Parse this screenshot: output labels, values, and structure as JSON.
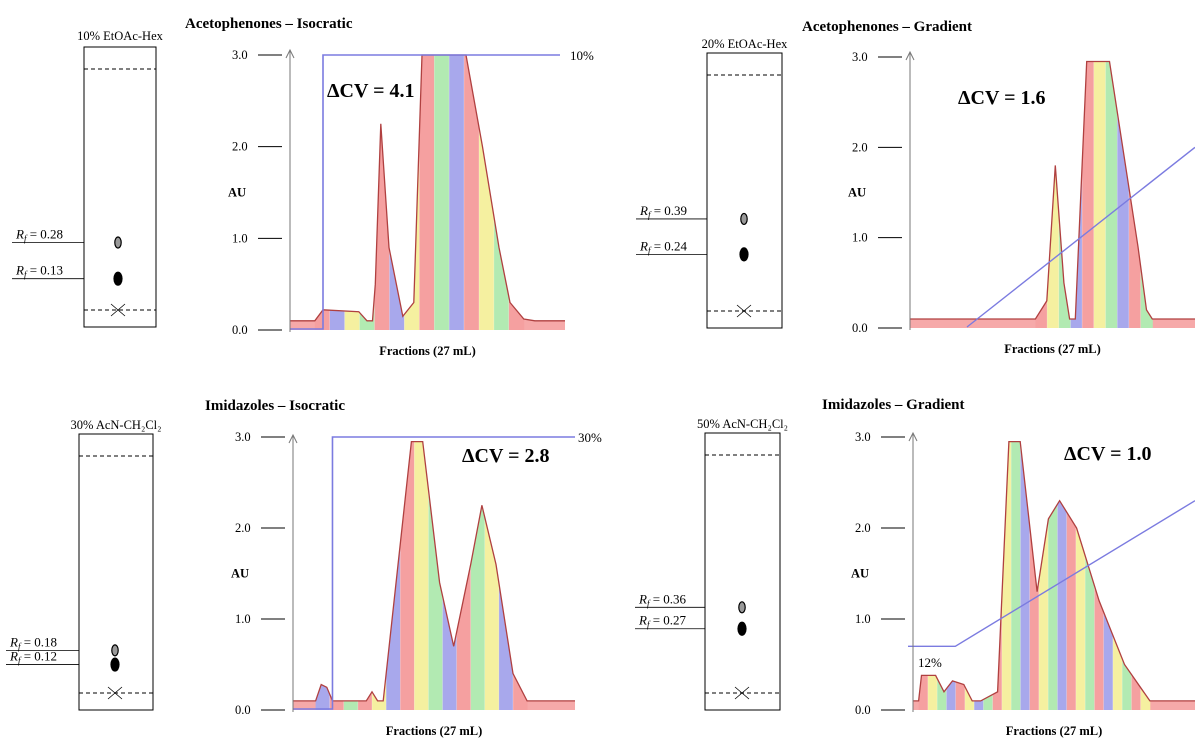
{
  "colors": {
    "red": "#f5a0a0",
    "yellow": "#f5f0a0",
    "green": "#b2eab2",
    "blue": "#a8a8ec",
    "gradient_line": "#7b7be0",
    "trace": "#b04040",
    "baseline_fill": "#f5a0a0"
  },
  "panels": [
    {
      "title": "Acetophenones – Isocratic",
      "tlc": {
        "solvent": "10% EtOAc-Hex",
        "spots": [
          {
            "label": "R",
            "sub": "f",
            "value": " = 0.28",
            "rf": 0.28,
            "shade": "light"
          },
          {
            "label": "R",
            "sub": "f",
            "value": " = 0.13",
            "rf": 0.13,
            "shade": "dark"
          }
        ]
      },
      "chart_data": {
        "type": "area",
        "ylabel": "AU",
        "xlabel": "Fractions (27 mL)",
        "ylim": [
          0,
          3
        ],
        "y_ticks": [
          "0.0",
          "1.0",
          "2.0",
          "3.0"
        ],
        "y_tick_values": [
          0,
          1,
          2,
          3
        ],
        "annotation": "ΔCV = 4.1",
        "gradient": {
          "type": "step",
          "label": "10%"
        },
        "trace": {
          "x": [
            0,
            0.09,
            0.12,
            0.25,
            0.28,
            0.3,
            0.31,
            0.33,
            0.36,
            0.41,
            0.45,
            0.48,
            0.56,
            0.64,
            0.7,
            0.76,
            0.8,
            0.85,
            0.89,
            1.0
          ],
          "y": [
            0.1,
            0.1,
            0.22,
            0.2,
            0.1,
            0.1,
            0.5,
            2.25,
            0.9,
            0.15,
            0.3,
            3.0,
            3.0,
            3.0,
            2.0,
            0.9,
            0.3,
            0.12,
            0.1,
            0.1
          ]
        },
        "bands": [
          "red",
          "blue",
          "yellow",
          "green",
          "red",
          "blue",
          "yellow",
          "red",
          "green",
          "blue",
          "red",
          "yellow",
          "green",
          "red"
        ]
      }
    },
    {
      "title": "Acetophenones – Gradient",
      "tlc": {
        "solvent": "20% EtOAc-Hex",
        "spots": [
          {
            "label": "R",
            "sub": "f",
            "value": " = 0.39",
            "rf": 0.39,
            "shade": "light"
          },
          {
            "label": "R",
            "sub": "f",
            "value": " = 0.24",
            "rf": 0.24,
            "shade": "dark"
          }
        ]
      },
      "chart_data": {
        "type": "area",
        "ylabel": "AU",
        "xlabel": "Fractions (27 mL)",
        "ylim": [
          0,
          3
        ],
        "y_ticks": [
          "0.0",
          "1.0",
          "2.0",
          "3.0"
        ],
        "y_tick_values": [
          0,
          1,
          2,
          3
        ],
        "annotation": "ΔCV = 1.6",
        "gradient": {
          "type": "ramp",
          "label": ""
        },
        "trace": {
          "x": [
            0,
            0.44,
            0.48,
            0.51,
            0.54,
            0.56,
            0.58,
            0.62,
            0.66,
            0.7,
            0.8,
            0.83,
            0.85,
            0.87,
            1.0
          ],
          "y": [
            0.1,
            0.1,
            0.3,
            1.8,
            0.5,
            0.1,
            0.1,
            2.95,
            2.95,
            2.95,
            0.9,
            0.2,
            0.1,
            0.1,
            0.1
          ]
        },
        "bands": [
          "red",
          "yellow",
          "green",
          "blue",
          "red",
          "yellow",
          "green",
          "blue",
          "red",
          "green"
        ]
      }
    },
    {
      "title": "Imidazoles – Isocratic",
      "tlc": {
        "solvent": "30% AcN-CH₂Cl₂",
        "spots": [
          {
            "label": "R",
            "sub": "f",
            "value": " = 0.18",
            "rf": 0.18,
            "shade": "light"
          },
          {
            "label": "R",
            "sub": "f",
            "value": " = 0.12",
            "rf": 0.12,
            "shade": "dark"
          }
        ]
      },
      "chart_data": {
        "type": "area",
        "ylabel": "AU",
        "xlabel": "Fractions (27 mL)",
        "ylim": [
          0,
          3
        ],
        "y_ticks": [
          "0.0",
          "1.0",
          "2.0",
          "3.0"
        ],
        "y_tick_values": [
          0,
          1,
          2,
          3
        ],
        "annotation": "ΔCV = 2.8",
        "gradient": {
          "type": "step",
          "label": "30%"
        },
        "trace": {
          "x": [
            0,
            0.08,
            0.1,
            0.12,
            0.14,
            0.26,
            0.28,
            0.3,
            0.32,
            0.42,
            0.46,
            0.52,
            0.57,
            0.63,
            0.67,
            0.72,
            0.78,
            0.83,
            0.88,
            1.0
          ],
          "y": [
            0.1,
            0.1,
            0.28,
            0.25,
            0.1,
            0.1,
            0.2,
            0.1,
            0.1,
            2.95,
            2.95,
            1.4,
            0.7,
            1.6,
            2.25,
            1.6,
            0.4,
            0.1,
            0.1,
            0.1
          ]
        },
        "bands": [
          "blue",
          "red",
          "green",
          "red",
          "yellow",
          "blue",
          "red",
          "yellow",
          "green",
          "blue",
          "red",
          "green",
          "yellow",
          "blue",
          "red"
        ]
      }
    },
    {
      "title": "Imidazoles – Gradient",
      "tlc": {
        "solvent": "50% AcN-CH₂Cl₂",
        "spots": [
          {
            "label": "R",
            "sub": "f",
            "value": " = 0.36",
            "rf": 0.36,
            "shade": "light"
          },
          {
            "label": "R",
            "sub": "f",
            "value": " = 0.27",
            "rf": 0.27,
            "shade": "dark"
          }
        ]
      },
      "chart_data": {
        "type": "area",
        "ylabel": "AU",
        "xlabel": "Fractions (27 mL)",
        "ylim": [
          0,
          3
        ],
        "y_ticks": [
          "0.0",
          "1.0",
          "2.0",
          "3.0"
        ],
        "y_tick_values": [
          0,
          1,
          2,
          3
        ],
        "annotation": "ΔCV = 1.0",
        "gradient": {
          "type": "ramp",
          "label": "12%"
        },
        "trace": {
          "x": [
            0,
            0.02,
            0.03,
            0.08,
            0.11,
            0.14,
            0.18,
            0.21,
            0.24,
            0.3,
            0.34,
            0.38,
            0.44,
            0.48,
            0.52,
            0.58,
            0.66,
            0.75,
            0.84,
            0.9,
            1.0
          ],
          "y": [
            0.1,
            0.1,
            0.38,
            0.38,
            0.2,
            0.32,
            0.28,
            0.1,
            0.1,
            0.2,
            2.95,
            2.95,
            1.3,
            2.1,
            2.3,
            2.0,
            1.2,
            0.5,
            0.1,
            0.1,
            0.1
          ]
        },
        "bands": [
          "red",
          "yellow",
          "green",
          "blue",
          "red",
          "yellow",
          "blue",
          "green",
          "red",
          "yellow",
          "green",
          "blue",
          "red",
          "yellow",
          "green",
          "blue",
          "red",
          "yellow",
          "green",
          "red",
          "blue",
          "yellow",
          "green",
          "red",
          "yellow"
        ]
      }
    }
  ]
}
